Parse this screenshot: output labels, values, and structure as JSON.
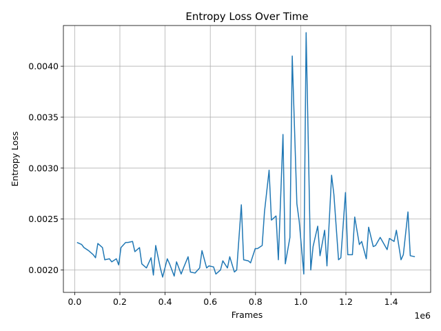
{
  "chart_data": {
    "type": "line",
    "title": "Entropy Loss Over Time",
    "xlabel": "Frames",
    "ylabel": "Entropy Loss",
    "x_offset_text": "1e6",
    "xlim": [
      -50000,
      1575000
    ],
    "ylim": [
      0.00178,
      0.0044
    ],
    "grid": true,
    "x_ticks": [
      0,
      200000,
      400000,
      600000,
      800000,
      1000000,
      1200000,
      1400000
    ],
    "x_tick_labels": [
      "0.0",
      "0.2",
      "0.4",
      "0.6",
      "0.8",
      "1.0",
      "1.2",
      "1.4"
    ],
    "y_ticks": [
      0.002,
      0.0025,
      0.003,
      0.0035,
      0.004
    ],
    "y_tick_labels": [
      "0.0020",
      "0.0025",
      "0.0030",
      "0.0035",
      "0.0040"
    ],
    "series": [
      {
        "color": "#1f77b4",
        "x": [
          10240,
          30720,
          40960,
          61440,
          81920,
          92160,
          102400,
          122880,
          133120,
          153600,
          163840,
          184320,
          194560,
          204800,
          225280,
          235520,
          256000,
          266240,
          286720,
          296960,
          317440,
          337920,
          348160,
          358400,
          378880,
          389120,
          409600,
          419840,
          440320,
          450560,
          471040,
          481280,
          501760,
          512000,
          532480,
          552960,
          563200,
          583680,
          593920,
          614400,
          624640,
          645120,
          655360,
          675840,
          686080,
          706560,
          716800,
          737280,
          747520,
          768000,
          778240,
          798720,
          808960,
          829440,
          839680,
          860160,
          870400,
          890880,
          901120,
          921600,
          931840,
          952320,
          962560,
          983040,
          993280,
          1013760,
          1024000,
          1044480,
          1054720,
          1075200,
          1085440,
          1105920,
          1116160,
          1136640,
          1146880,
          1167360,
          1177600,
          1198080,
          1208320,
          1228800,
          1239040,
          1259520,
          1269760,
          1290240,
          1300480,
          1320960,
          1331200,
          1351680,
          1361920,
          1382400,
          1392640,
          1413120,
          1423360,
          1443840,
          1454080,
          1474560,
          1484800,
          1505280
        ],
        "y": [
          0.00227,
          0.00225,
          0.00222,
          0.00219,
          0.00215,
          0.00212,
          0.00226,
          0.00222,
          0.0021,
          0.00211,
          0.00208,
          0.00211,
          0.00205,
          0.00222,
          0.00227,
          0.00227,
          0.00228,
          0.00218,
          0.00222,
          0.00206,
          0.00202,
          0.00212,
          0.00195,
          0.00224,
          0.00202,
          0.00193,
          0.00211,
          0.00206,
          0.00194,
          0.00208,
          0.00196,
          0.00202,
          0.00213,
          0.00198,
          0.00197,
          0.00202,
          0.00219,
          0.00202,
          0.00204,
          0.00203,
          0.00196,
          0.002,
          0.00209,
          0.00202,
          0.00213,
          0.00198,
          0.002,
          0.00264,
          0.0021,
          0.00209,
          0.00207,
          0.00221,
          0.00221,
          0.00224,
          0.00257,
          0.00298,
          0.00249,
          0.00253,
          0.0021,
          0.00333,
          0.00206,
          0.00232,
          0.0041,
          0.00265,
          0.00248,
          0.00196,
          0.00433,
          0.002,
          0.00223,
          0.00243,
          0.00214,
          0.00239,
          0.00204,
          0.00293,
          0.00274,
          0.0021,
          0.00212,
          0.00276,
          0.00215,
          0.00215,
          0.00252,
          0.00225,
          0.00228,
          0.00211,
          0.00242,
          0.00223,
          0.00224,
          0.00232,
          0.00228,
          0.0022,
          0.00231,
          0.00228,
          0.00239,
          0.0021,
          0.00215,
          0.00257,
          0.00214,
          0.00213
        ]
      }
    ]
  }
}
